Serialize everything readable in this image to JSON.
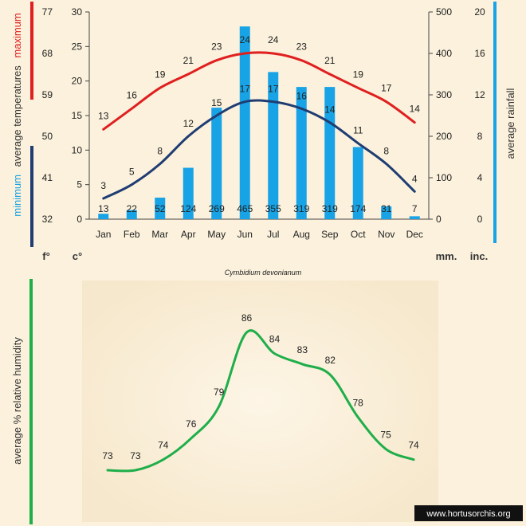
{
  "chart_data": [
    {
      "type": "bar",
      "subtype": "climate-diagram",
      "title": "",
      "subtitle": "Cymbidium devonianum",
      "categories": [
        "Jan",
        "Feb",
        "Mar",
        "Apr",
        "May",
        "Jun",
        "Jul",
        "Aug",
        "Sep",
        "Oct",
        "Nov",
        "Dec"
      ],
      "series": [
        {
          "name": "maximum",
          "kind": "line",
          "axis": "temperature",
          "color": "#e01f1f",
          "values": [
            13,
            16,
            19,
            21,
            23,
            24,
            24,
            23,
            21,
            19,
            17,
            14
          ]
        },
        {
          "name": "minimum",
          "kind": "line",
          "axis": "temperature",
          "color": "#1f3d73",
          "values": [
            3,
            5,
            8,
            12,
            15,
            17,
            17,
            16,
            14,
            11,
            8,
            4
          ]
        },
        {
          "name": "rainfall",
          "kind": "bar",
          "axis": "rainfall",
          "color": "#17a3e6",
          "values": [
            13,
            22,
            52,
            124,
            269,
            465,
            355,
            319,
            319,
            174,
            31,
            7
          ]
        }
      ],
      "axes": {
        "left_celsius": {
          "range": [
            0,
            30
          ],
          "ticks": [
            "0",
            "5",
            "10",
            "15",
            "20",
            "25",
            "30"
          ]
        },
        "left_fahrenheit": {
          "ticks": [
            "32",
            "41",
            "50",
            "59",
            "68",
            "77"
          ]
        },
        "right_mm": {
          "range": [
            0,
            500
          ],
          "ticks": [
            "0",
            "100",
            "200",
            "300",
            "400",
            "500"
          ]
        },
        "right_inches": {
          "ticks": [
            "0",
            "4",
            "8",
            "12",
            "16",
            "20"
          ]
        }
      },
      "labels": {
        "ylabel_left_top": "maximum",
        "ylabel_left_mid": "average  temperatures",
        "ylabel_left_bottom": "minimum",
        "ylabel_right": "average rainfall",
        "unit_f": "f°",
        "unit_c": "c°",
        "unit_mm": "mm.",
        "unit_inc": "inc."
      },
      "colors": {
        "max_axis_bar": "#e01f1f",
        "min_axis_bar": "#1f3d73",
        "minimum_label": "#17a3e6",
        "rain_axis_bar": "#17a3e6"
      },
      "grid": false,
      "legend": "none"
    },
    {
      "type": "line",
      "categories": [
        "Jan",
        "Feb",
        "Mar",
        "Apr",
        "May",
        "Jun",
        "Jul",
        "Aug",
        "Sep",
        "Oct",
        "Nov",
        "Dec"
      ],
      "series": [
        {
          "name": "relative humidity",
          "color": "#1fae4a",
          "values": [
            73,
            73,
            74,
            76,
            79,
            86,
            84,
            83,
            82,
            78,
            75,
            74
          ]
        }
      ],
      "ylabel": "average %  relative humidity",
      "axis_bar_color": "#1fae4a",
      "grid": false,
      "legend": "none"
    }
  ],
  "footer": {
    "watermark": "www.hortusorchis.org"
  }
}
